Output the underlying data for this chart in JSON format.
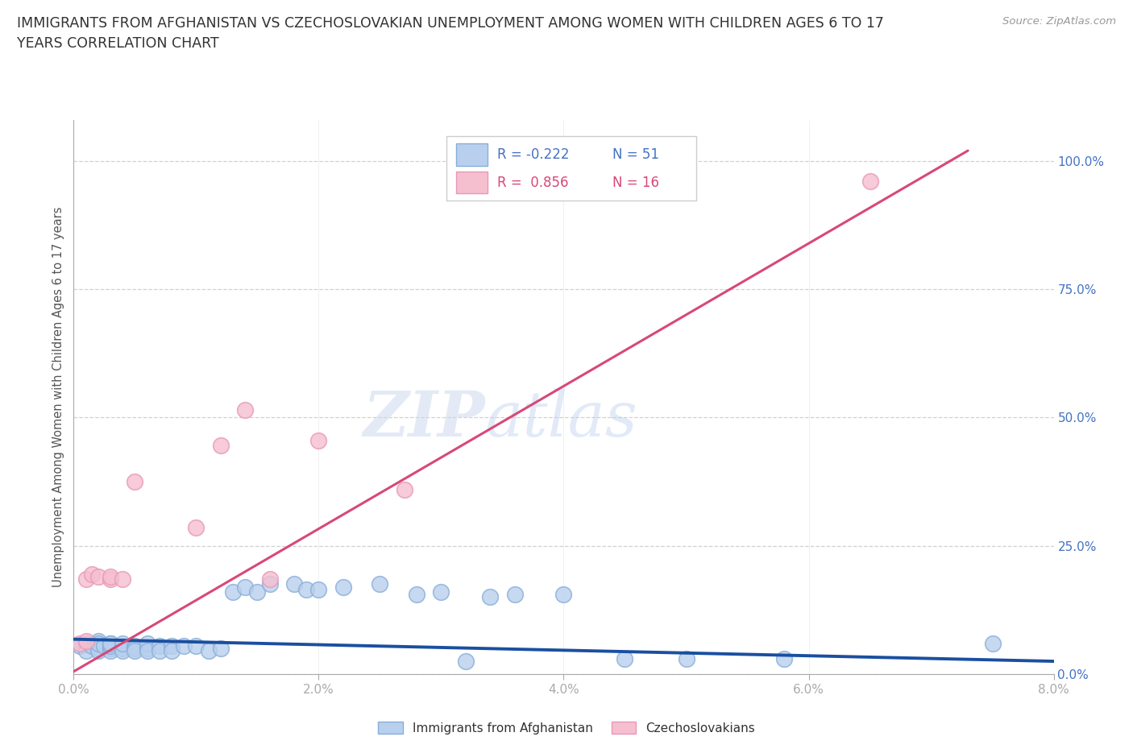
{
  "title_line1": "IMMIGRANTS FROM AFGHANISTAN VS CZECHOSLOVAKIAN UNEMPLOYMENT AMONG WOMEN WITH CHILDREN AGES 6 TO 17",
  "title_line2": "YEARS CORRELATION CHART",
  "source": "Source: ZipAtlas.com",
  "ylabel": "Unemployment Among Women with Children Ages 6 to 17 years",
  "xlim": [
    0.0,
    0.08
  ],
  "ylim": [
    0.0,
    1.08
  ],
  "xticks": [
    0.0,
    0.02,
    0.04,
    0.06,
    0.08
  ],
  "xticklabels": [
    "0.0%",
    "2.0%",
    "4.0%",
    "6.0%",
    "8.0%"
  ],
  "yticks": [
    0.0,
    0.25,
    0.5,
    0.75,
    1.0
  ],
  "yticklabels": [
    "0.0%",
    "25.0%",
    "50.0%",
    "75.0%",
    "100.0%"
  ],
  "watermark_zip": "ZIP",
  "watermark_atlas": "atlas",
  "legend_r1": "R = -0.222",
  "legend_n1": "N = 51",
  "legend_r2": "R =  0.856",
  "legend_n2": "N = 16",
  "blue_face": "#b8d0ee",
  "pink_face": "#f5bfd0",
  "blue_edge": "#8aaed8",
  "pink_edge": "#e898b8",
  "blue_line": "#1a4fa0",
  "pink_line": "#d84878",
  "afghanistan_x": [
    0.0005,
    0.001,
    0.001,
    0.0015,
    0.002,
    0.002,
    0.002,
    0.002,
    0.0025,
    0.003,
    0.003,
    0.003,
    0.003,
    0.003,
    0.004,
    0.004,
    0.004,
    0.004,
    0.005,
    0.005,
    0.005,
    0.006,
    0.006,
    0.006,
    0.007,
    0.007,
    0.008,
    0.008,
    0.009,
    0.01,
    0.011,
    0.012,
    0.013,
    0.014,
    0.015,
    0.016,
    0.018,
    0.019,
    0.02,
    0.022,
    0.025,
    0.028,
    0.03,
    0.032,
    0.034,
    0.036,
    0.04,
    0.045,
    0.05,
    0.058,
    0.075
  ],
  "afghanistan_y": [
    0.055,
    0.06,
    0.045,
    0.055,
    0.065,
    0.05,
    0.045,
    0.06,
    0.055,
    0.06,
    0.05,
    0.045,
    0.055,
    0.06,
    0.055,
    0.05,
    0.045,
    0.06,
    0.055,
    0.05,
    0.045,
    0.05,
    0.06,
    0.045,
    0.055,
    0.045,
    0.055,
    0.045,
    0.055,
    0.055,
    0.045,
    0.05,
    0.16,
    0.17,
    0.16,
    0.175,
    0.175,
    0.165,
    0.165,
    0.17,
    0.175,
    0.155,
    0.16,
    0.025,
    0.15,
    0.155,
    0.155,
    0.03,
    0.03,
    0.03,
    0.06
  ],
  "czechoslovakian_x": [
    0.0005,
    0.001,
    0.001,
    0.0015,
    0.002,
    0.003,
    0.003,
    0.004,
    0.005,
    0.01,
    0.012,
    0.014,
    0.016,
    0.02,
    0.027,
    0.065
  ],
  "czechoslovakian_y": [
    0.06,
    0.065,
    0.185,
    0.195,
    0.19,
    0.185,
    0.19,
    0.185,
    0.375,
    0.285,
    0.445,
    0.515,
    0.185,
    0.455,
    0.36,
    0.96
  ],
  "blue_trend_x": [
    0.0,
    0.08
  ],
  "blue_trend_y": [
    0.068,
    0.025
  ],
  "pink_trend_x": [
    0.0,
    0.073
  ],
  "pink_trend_y": [
    0.005,
    1.02
  ]
}
